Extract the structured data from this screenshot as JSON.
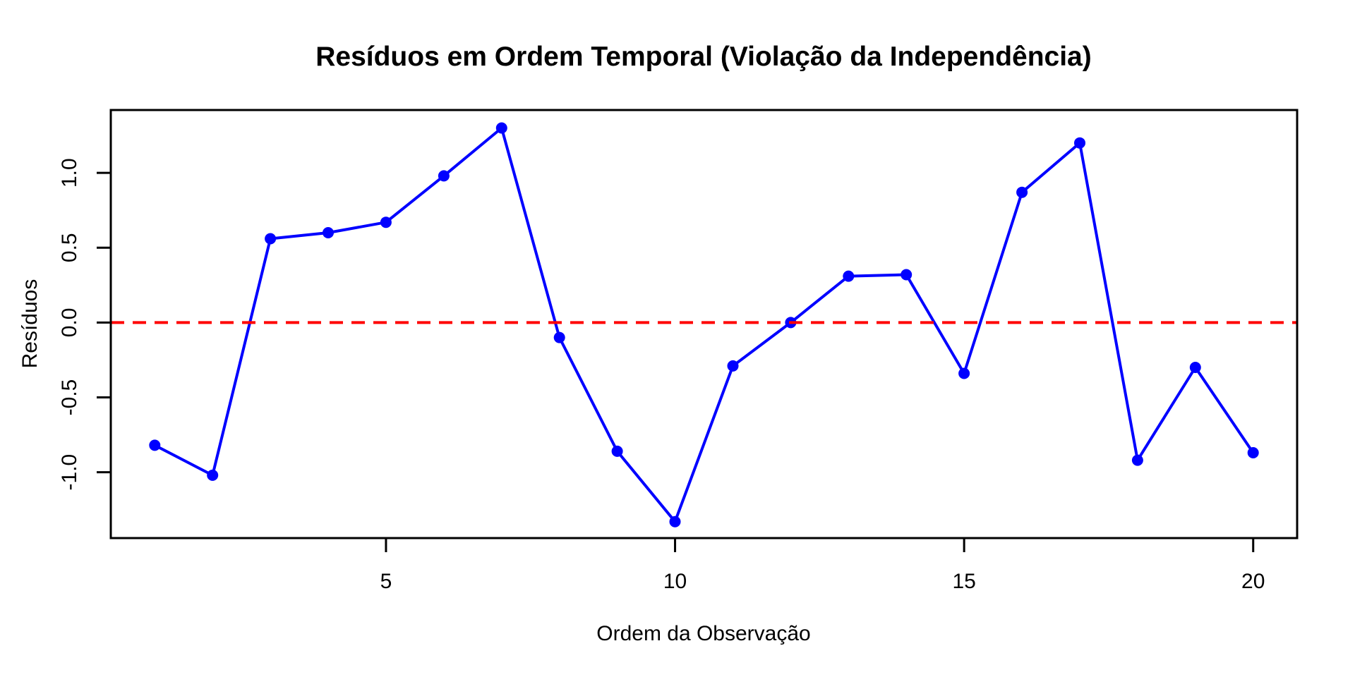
{
  "chart_data": {
    "type": "line",
    "title": "Resíduos em Ordem Temporal (Violação da Independência)",
    "xlabel": "Ordem da Observação",
    "ylabel": "Resíduos",
    "x": [
      1,
      2,
      3,
      4,
      5,
      6,
      7,
      8,
      9,
      10,
      11,
      12,
      13,
      14,
      15,
      16,
      17,
      18,
      19,
      20
    ],
    "series": [
      {
        "name": "residuos",
        "values": [
          -0.82,
          -1.02,
          0.56,
          0.6,
          0.67,
          0.98,
          1.3,
          -0.1,
          -0.86,
          -1.33,
          -0.29,
          0.0,
          0.31,
          0.32,
          -0.34,
          0.87,
          1.2,
          -0.92,
          -0.3,
          -0.87
        ]
      }
    ],
    "x_ticks": {
      "values": [
        5,
        10,
        15,
        20
      ],
      "labels": [
        "5",
        "10",
        "15",
        "20"
      ]
    },
    "y_ticks": {
      "values": [
        -1.0,
        -0.5,
        0.0,
        0.5,
        1.0
      ],
      "labels": [
        "-1.0",
        "-0.5",
        "0.0",
        "0.5",
        "1.0"
      ]
    },
    "xlim": [
      0.24,
      20.76
    ],
    "ylim": [
      -1.44,
      1.42
    ],
    "grid": false,
    "legend": false,
    "zero_line": {
      "value": 0,
      "style": "dashed"
    },
    "marker": "filled-circle",
    "colors": {
      "series": "#0000FF",
      "zero_line": "#FF0000",
      "axis": "#000000",
      "background": "#FFFFFF"
    }
  }
}
